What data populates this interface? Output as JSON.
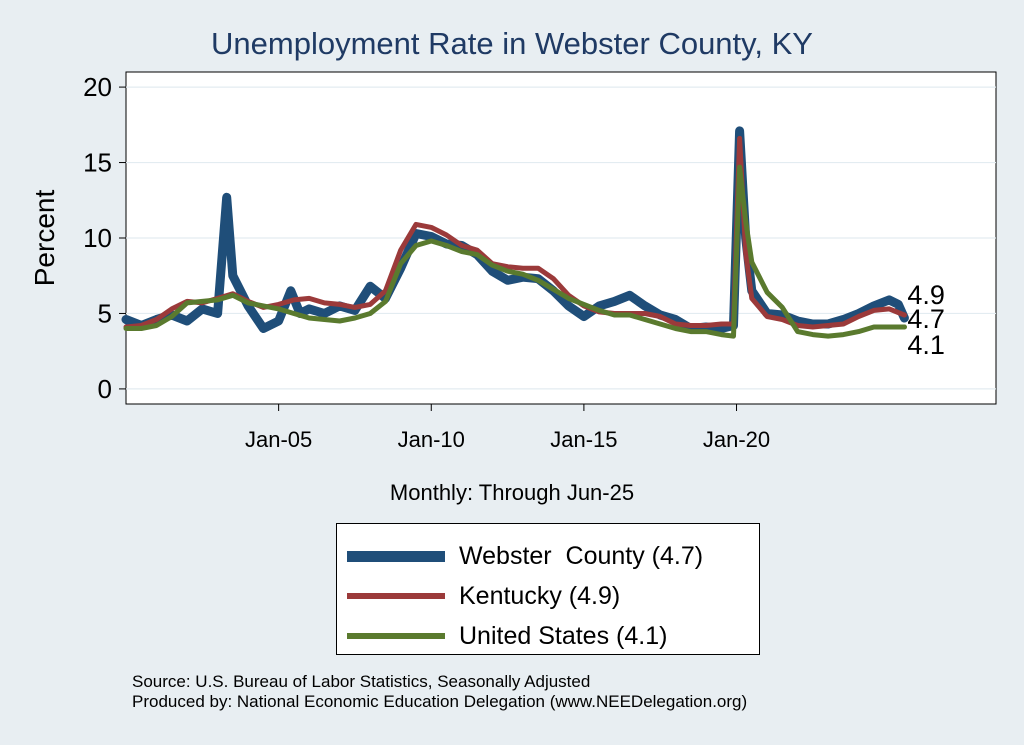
{
  "chart_data": {
    "type": "line",
    "title": "Unemployment Rate in Webster  County, KY",
    "ylabel": "Percent",
    "xlabel": "Monthly: Through Jun-25",
    "ylim": [
      -1,
      21
    ],
    "xlim": [
      2000.0,
      2028.5
    ],
    "yticks": [
      "0",
      "5",
      "10",
      "15",
      "20"
    ],
    "ytick_values": [
      0,
      5,
      10,
      15,
      20
    ],
    "xticks": [
      "Jan-05",
      "Jan-10",
      "Jan-15",
      "Jan-20"
    ],
    "xtick_values": [
      2005.0,
      2010.0,
      2015.0,
      2020.0
    ],
    "grid": true,
    "legend_position": "bottom",
    "series": [
      {
        "name": "Webster  County (4.7)",
        "color": "#1f4e79",
        "points": [
          [
            2000.0,
            4.6
          ],
          [
            2000.5,
            4.2
          ],
          [
            2001.0,
            4.6
          ],
          [
            2001.5,
            4.9
          ],
          [
            2002.0,
            4.5
          ],
          [
            2002.5,
            5.3
          ],
          [
            2003.0,
            5.0
          ],
          [
            2003.3,
            12.7
          ],
          [
            2003.5,
            7.5
          ],
          [
            2004.0,
            5.5
          ],
          [
            2004.5,
            4.0
          ],
          [
            2005.0,
            4.5
          ],
          [
            2005.4,
            6.5
          ],
          [
            2005.7,
            5.0
          ],
          [
            2006.0,
            5.3
          ],
          [
            2006.5,
            5.0
          ],
          [
            2007.0,
            5.5
          ],
          [
            2007.5,
            5.2
          ],
          [
            2008.0,
            6.8
          ],
          [
            2008.5,
            6.0
          ],
          [
            2009.0,
            8.0
          ],
          [
            2009.5,
            10.3
          ],
          [
            2010.0,
            10.1
          ],
          [
            2010.5,
            9.6
          ],
          [
            2011.0,
            9.5
          ],
          [
            2011.5,
            8.9
          ],
          [
            2012.0,
            7.8
          ],
          [
            2012.5,
            7.2
          ],
          [
            2013.0,
            7.4
          ],
          [
            2013.5,
            7.3
          ],
          [
            2014.0,
            6.5
          ],
          [
            2014.5,
            5.5
          ],
          [
            2015.0,
            4.8
          ],
          [
            2015.5,
            5.5
          ],
          [
            2016.0,
            5.8
          ],
          [
            2016.5,
            6.2
          ],
          [
            2017.0,
            5.5
          ],
          [
            2017.5,
            4.9
          ],
          [
            2018.0,
            4.6
          ],
          [
            2018.5,
            4.0
          ],
          [
            2019.0,
            4.1
          ],
          [
            2019.5,
            4.0
          ],
          [
            2019.9,
            4.2
          ],
          [
            2020.1,
            17.1
          ],
          [
            2020.3,
            10.0
          ],
          [
            2020.5,
            6.5
          ],
          [
            2021.0,
            5.0
          ],
          [
            2021.5,
            4.9
          ],
          [
            2022.0,
            4.5
          ],
          [
            2022.5,
            4.3
          ],
          [
            2023.0,
            4.3
          ],
          [
            2023.5,
            4.6
          ],
          [
            2024.0,
            5.0
          ],
          [
            2024.5,
            5.5
          ],
          [
            2025.0,
            5.9
          ],
          [
            2025.3,
            5.6
          ],
          [
            2025.5,
            4.7
          ]
        ]
      },
      {
        "name": "Kentucky (4.9)",
        "color": "#9b3a3a",
        "points": [
          [
            2000.0,
            4.1
          ],
          [
            2000.5,
            4.2
          ],
          [
            2001.0,
            4.6
          ],
          [
            2001.5,
            5.3
          ],
          [
            2002.0,
            5.8
          ],
          [
            2002.5,
            5.7
          ],
          [
            2003.0,
            6.0
          ],
          [
            2003.5,
            6.3
          ],
          [
            2004.0,
            5.8
          ],
          [
            2004.5,
            5.4
          ],
          [
            2005.0,
            5.6
          ],
          [
            2005.5,
            5.9
          ],
          [
            2006.0,
            6.0
          ],
          [
            2006.5,
            5.7
          ],
          [
            2007.0,
            5.6
          ],
          [
            2007.5,
            5.4
          ],
          [
            2008.0,
            5.6
          ],
          [
            2008.5,
            6.5
          ],
          [
            2009.0,
            9.2
          ],
          [
            2009.5,
            10.9
          ],
          [
            2010.0,
            10.7
          ],
          [
            2010.5,
            10.2
          ],
          [
            2011.0,
            9.5
          ],
          [
            2011.5,
            9.2
          ],
          [
            2012.0,
            8.3
          ],
          [
            2012.5,
            8.1
          ],
          [
            2013.0,
            8.0
          ],
          [
            2013.5,
            8.0
          ],
          [
            2014.0,
            7.3
          ],
          [
            2014.5,
            6.2
          ],
          [
            2015.0,
            5.5
          ],
          [
            2015.5,
            5.1
          ],
          [
            2016.0,
            5.0
          ],
          [
            2016.5,
            5.0
          ],
          [
            2017.0,
            5.0
          ],
          [
            2017.5,
            4.8
          ],
          [
            2018.0,
            4.3
          ],
          [
            2018.5,
            4.2
          ],
          [
            2019.0,
            4.2
          ],
          [
            2019.5,
            4.3
          ],
          [
            2019.9,
            4.3
          ],
          [
            2020.1,
            16.6
          ],
          [
            2020.3,
            9.0
          ],
          [
            2020.5,
            6.0
          ],
          [
            2021.0,
            4.8
          ],
          [
            2021.5,
            4.6
          ],
          [
            2022.0,
            4.2
          ],
          [
            2022.5,
            4.1
          ],
          [
            2023.0,
            4.2
          ],
          [
            2023.5,
            4.3
          ],
          [
            2024.0,
            4.8
          ],
          [
            2024.5,
            5.2
          ],
          [
            2025.0,
            5.3
          ],
          [
            2025.5,
            4.9
          ]
        ]
      },
      {
        "name": "United States (4.1)",
        "color": "#5a7a2e",
        "points": [
          [
            2000.0,
            4.0
          ],
          [
            2000.5,
            4.0
          ],
          [
            2001.0,
            4.2
          ],
          [
            2001.5,
            4.8
          ],
          [
            2002.0,
            5.7
          ],
          [
            2002.5,
            5.8
          ],
          [
            2003.0,
            5.9
          ],
          [
            2003.5,
            6.2
          ],
          [
            2004.0,
            5.7
          ],
          [
            2004.5,
            5.5
          ],
          [
            2005.0,
            5.3
          ],
          [
            2005.5,
            5.0
          ],
          [
            2006.0,
            4.7
          ],
          [
            2006.5,
            4.6
          ],
          [
            2007.0,
            4.5
          ],
          [
            2007.5,
            4.7
          ],
          [
            2008.0,
            5.0
          ],
          [
            2008.5,
            5.8
          ],
          [
            2009.0,
            8.3
          ],
          [
            2009.5,
            9.5
          ],
          [
            2010.0,
            9.8
          ],
          [
            2010.5,
            9.5
          ],
          [
            2011.0,
            9.1
          ],
          [
            2011.5,
            8.9
          ],
          [
            2012.0,
            8.2
          ],
          [
            2012.5,
            7.8
          ],
          [
            2013.0,
            7.6
          ],
          [
            2013.5,
            7.2
          ],
          [
            2014.0,
            6.6
          ],
          [
            2014.5,
            6.0
          ],
          [
            2015.0,
            5.6
          ],
          [
            2015.5,
            5.2
          ],
          [
            2016.0,
            4.9
          ],
          [
            2016.5,
            4.9
          ],
          [
            2017.0,
            4.6
          ],
          [
            2017.5,
            4.3
          ],
          [
            2018.0,
            4.0
          ],
          [
            2018.5,
            3.8
          ],
          [
            2019.0,
            3.8
          ],
          [
            2019.5,
            3.6
          ],
          [
            2019.9,
            3.5
          ],
          [
            2020.1,
            14.7
          ],
          [
            2020.3,
            11.1
          ],
          [
            2020.5,
            8.4
          ],
          [
            2021.0,
            6.4
          ],
          [
            2021.5,
            5.4
          ],
          [
            2022.0,
            3.8
          ],
          [
            2022.5,
            3.6
          ],
          [
            2023.0,
            3.5
          ],
          [
            2023.5,
            3.6
          ],
          [
            2024.0,
            3.8
          ],
          [
            2024.5,
            4.1
          ],
          [
            2025.0,
            4.1
          ],
          [
            2025.5,
            4.1
          ]
        ]
      }
    ],
    "end_labels": [
      "4.9",
      "4.7",
      "4.1"
    ]
  },
  "source_line1": "Source: U.S. Bureau of Labor Statistics, Seasonally Adjusted",
  "source_line2": "Produced by: National Economic Education Delegation (www.NEEDelegation.org)"
}
